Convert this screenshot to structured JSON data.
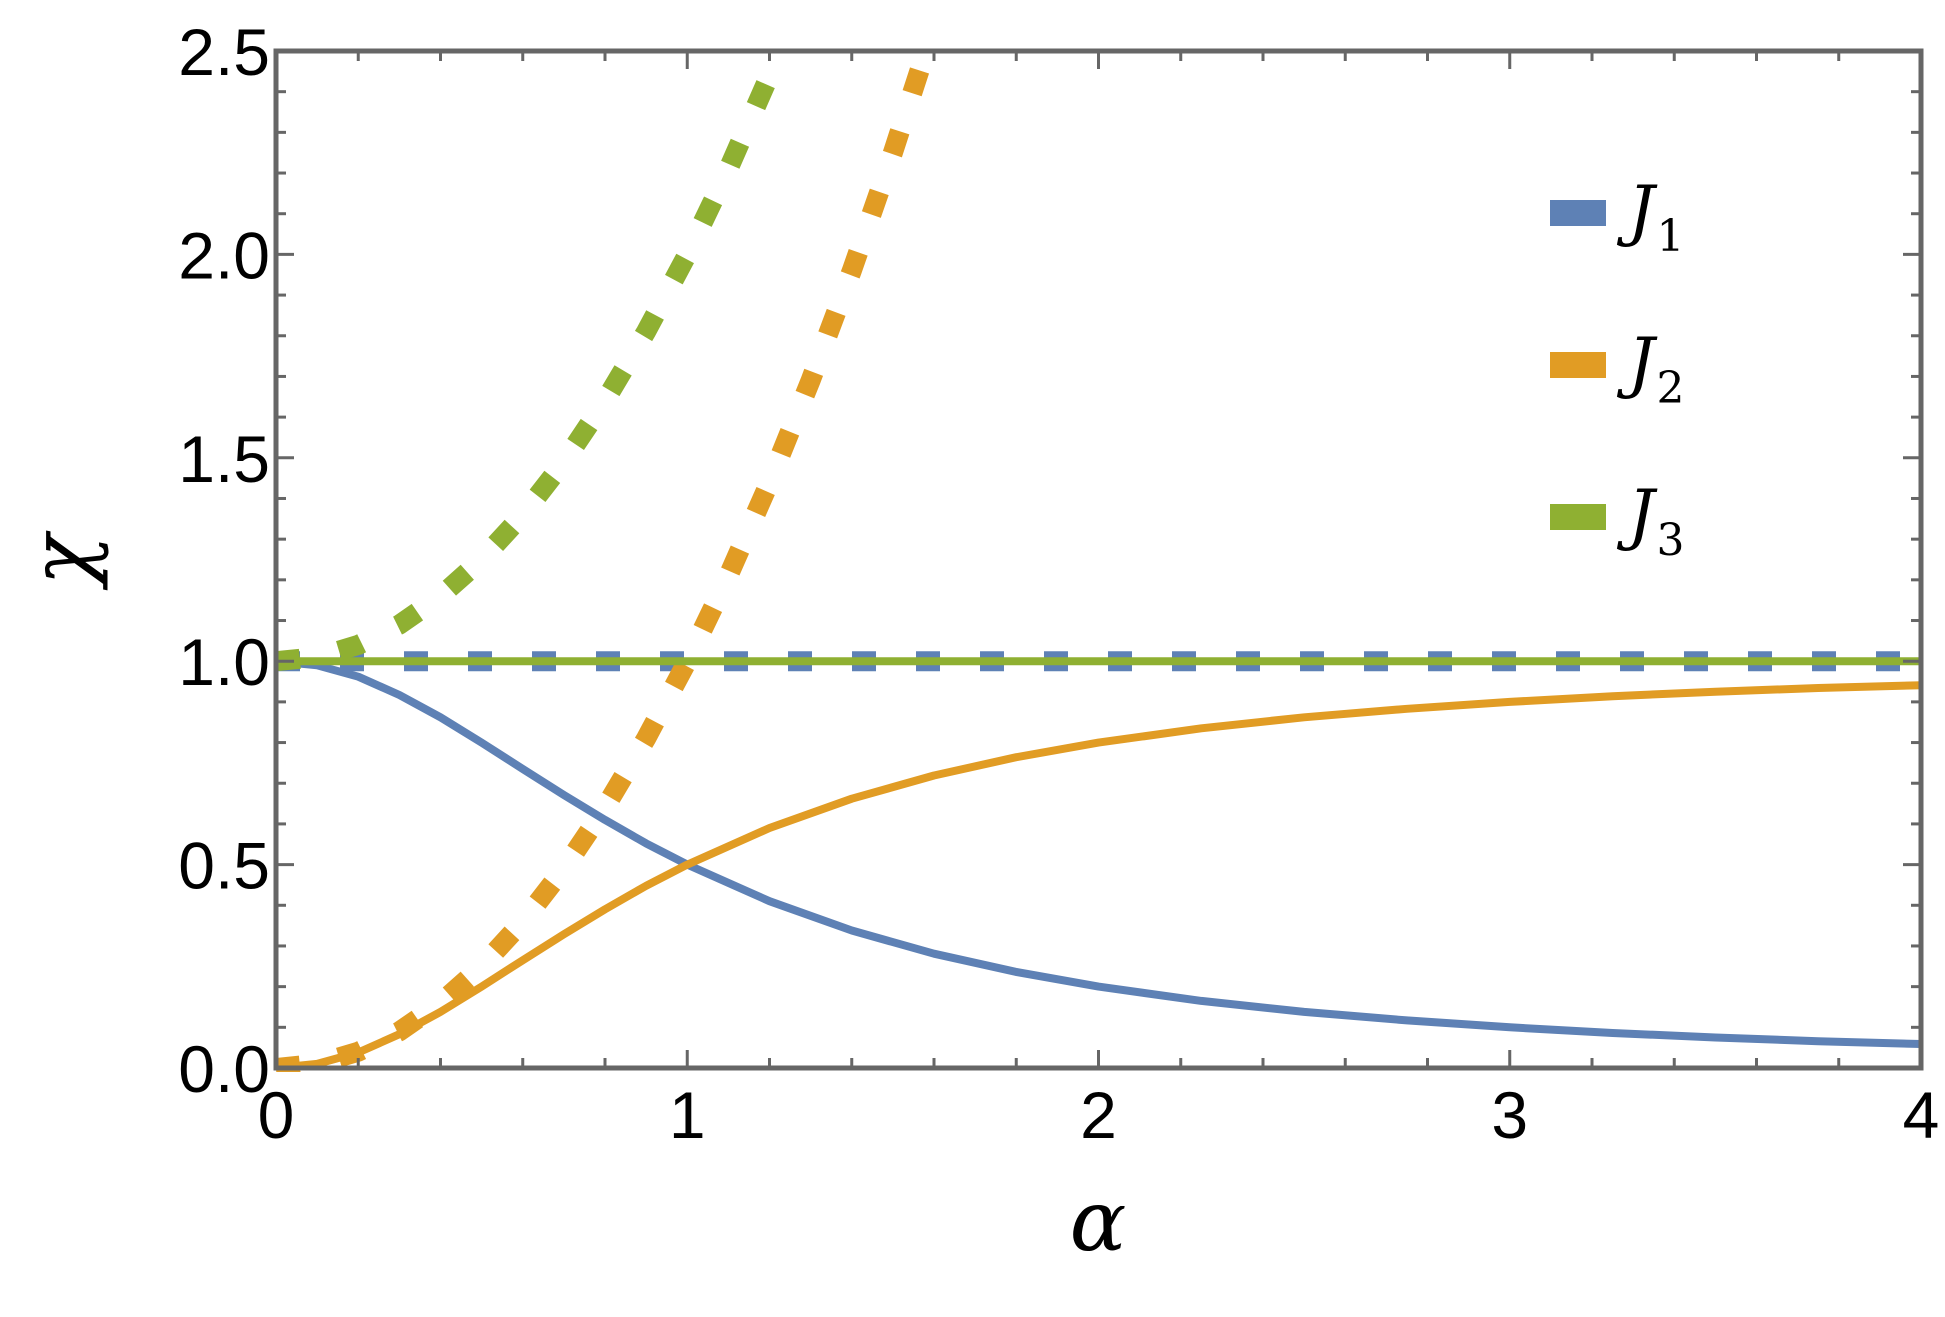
{
  "chart_data": {
    "type": "line",
    "xlabel": "α",
    "ylabel": "χ",
    "xlim": [
      0,
      4
    ],
    "ylim": [
      0,
      2.5
    ],
    "x_ticks": [
      "0",
      "1",
      "2",
      "3",
      "4"
    ],
    "y_ticks": [
      "0.0",
      "0.5",
      "1.0",
      "1.5",
      "2.0",
      "2.5"
    ],
    "x_tick_values": [
      0,
      1,
      2,
      3,
      4
    ],
    "y_tick_values": [
      0,
      0.5,
      1.0,
      1.5,
      2.0,
      2.5
    ],
    "grid": false,
    "legend_position": "top-right",
    "legend": [
      {
        "base": "J",
        "sub": "1",
        "color": "#5E81B5"
      },
      {
        "base": "J",
        "sub": "2",
        "color": "#E19C24"
      },
      {
        "base": "J",
        "sub": "3",
        "color": "#8FB032"
      }
    ],
    "series": [
      {
        "name": "J1",
        "style": "solid",
        "color": "#5E81B5",
        "x": [
          0,
          0.1,
          0.2,
          0.3,
          0.4,
          0.5,
          0.6,
          0.7,
          0.8,
          0.9,
          1.0,
          1.2,
          1.4,
          1.6,
          1.8,
          2.0,
          2.25,
          2.5,
          2.75,
          3.0,
          3.25,
          3.5,
          3.75,
          4.0
        ],
        "y": [
          1.0,
          0.99,
          0.962,
          0.917,
          0.862,
          0.8,
          0.735,
          0.671,
          0.61,
          0.552,
          0.5,
          0.41,
          0.338,
          0.281,
          0.236,
          0.2,
          0.165,
          0.138,
          0.117,
          0.1,
          0.086,
          0.075,
          0.066,
          0.059
        ]
      },
      {
        "name": "J1",
        "style": "dotted",
        "color": "#5E81B5",
        "x": [
          0,
          4
        ],
        "y": [
          1.0,
          1.0
        ]
      },
      {
        "name": "J2",
        "style": "solid",
        "color": "#E19C24",
        "x": [
          0,
          0.1,
          0.2,
          0.3,
          0.4,
          0.5,
          0.6,
          0.7,
          0.8,
          0.9,
          1.0,
          1.2,
          1.4,
          1.6,
          1.8,
          2.0,
          2.25,
          2.5,
          2.75,
          3.0,
          3.25,
          3.5,
          3.75,
          4.0
        ],
        "y": [
          0.0,
          0.01,
          0.038,
          0.083,
          0.138,
          0.2,
          0.265,
          0.329,
          0.39,
          0.448,
          0.5,
          0.59,
          0.662,
          0.719,
          0.764,
          0.8,
          0.835,
          0.862,
          0.883,
          0.9,
          0.914,
          0.925,
          0.934,
          0.941
        ]
      },
      {
        "name": "J2",
        "style": "dotted",
        "color": "#E19C24",
        "x": [
          0,
          0.1,
          0.2,
          0.3,
          0.4,
          0.5,
          0.6,
          0.7,
          0.8,
          0.9,
          1.0,
          1.1,
          1.2,
          1.3,
          1.4,
          1.5,
          1.58
        ],
        "y": [
          0.0,
          0.01,
          0.04,
          0.09,
          0.16,
          0.25,
          0.36,
          0.49,
          0.64,
          0.81,
          1.0,
          1.21,
          1.44,
          1.69,
          1.96,
          2.25,
          2.5
        ]
      },
      {
        "name": "J3",
        "style": "solid",
        "color": "#8FB032",
        "x": [
          0,
          4
        ],
        "y": [
          1.0,
          1.0
        ]
      },
      {
        "name": "J3",
        "style": "dotted",
        "color": "#8FB032",
        "x": [
          0,
          0.1,
          0.2,
          0.3,
          0.4,
          0.5,
          0.6,
          0.7,
          0.8,
          0.9,
          1.0,
          1.1,
          1.2,
          1.22
        ],
        "y": [
          1.0,
          1.01,
          1.04,
          1.09,
          1.16,
          1.25,
          1.36,
          1.49,
          1.64,
          1.81,
          2.0,
          2.21,
          2.44,
          2.5
        ]
      }
    ]
  }
}
